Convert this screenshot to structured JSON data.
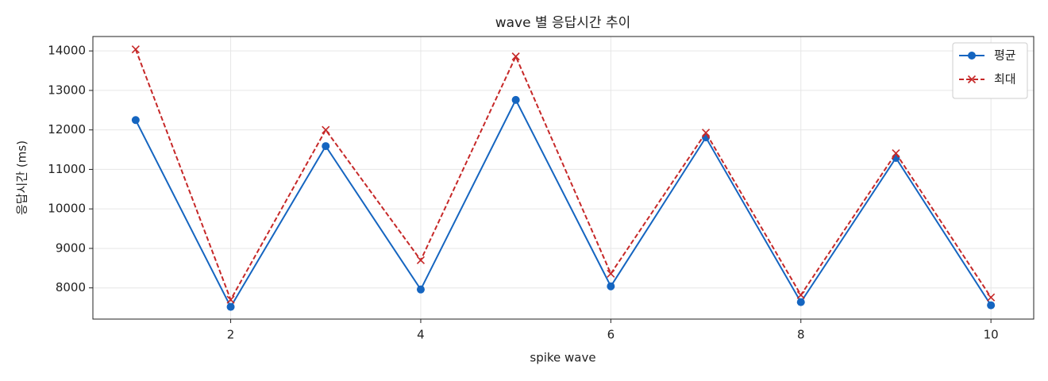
{
  "chart_data": {
    "type": "line",
    "title": "wave 별 응답시간 추이",
    "x_label": "spike wave",
    "y_label": "응답시간 (ms)",
    "x": [
      1,
      2,
      3,
      4,
      5,
      6,
      7,
      8,
      9,
      10
    ],
    "series": [
      {
        "name": "평균",
        "color": "#1565c0",
        "marker": "o",
        "linestyle": "solid",
        "values": [
          12250,
          7520,
          11590,
          7960,
          12760,
          8040,
          11810,
          7640,
          11290,
          7560
        ]
      },
      {
        "name": "최대",
        "color": "#c62828",
        "marker": "x",
        "linestyle": "dashed",
        "values": [
          14040,
          7700,
          12000,
          8700,
          13860,
          8360,
          11930,
          7820,
          11410,
          7760
        ]
      }
    ],
    "xlim": [
      0.55,
      10.45
    ],
    "ylim": [
      7210,
      14365
    ],
    "xticks": [
      2,
      4,
      6,
      8,
      10
    ],
    "yticks": [
      8000,
      9000,
      10000,
      11000,
      12000,
      13000,
      14000
    ],
    "grid": true,
    "legend": "upper right"
  }
}
